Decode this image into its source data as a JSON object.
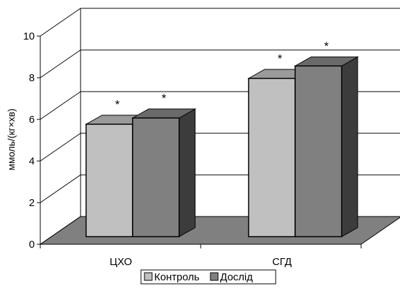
{
  "chart_data": {
    "type": "bar",
    "style": "3d-clustered-column",
    "categories": [
      "ЦХО",
      "СГД"
    ],
    "series": [
      {
        "name": "Контроль",
        "values": [
          5.9,
          8.1
        ],
        "color": "#c0c0c0"
      },
      {
        "name": "Дослід",
        "values": [
          6.2,
          8.7
        ],
        "color": "#808080"
      }
    ],
    "annotations": [
      {
        "text": "*",
        "category": "ЦХО",
        "series": "Контроль"
      },
      {
        "text": "*",
        "category": "ЦХО",
        "series": "Дослід"
      },
      {
        "text": "*",
        "category": "СГД",
        "series": "Контроль"
      },
      {
        "text": "*",
        "category": "СГД",
        "series": "Дослід"
      }
    ],
    "ylabel": "ммоль/(кг×хв)",
    "ylim": [
      0,
      10
    ],
    "yticks": [
      "0",
      "2",
      "4",
      "6",
      "8",
      "10"
    ],
    "grid": true,
    "legend_position": "bottom",
    "floor_color": "#808080"
  }
}
